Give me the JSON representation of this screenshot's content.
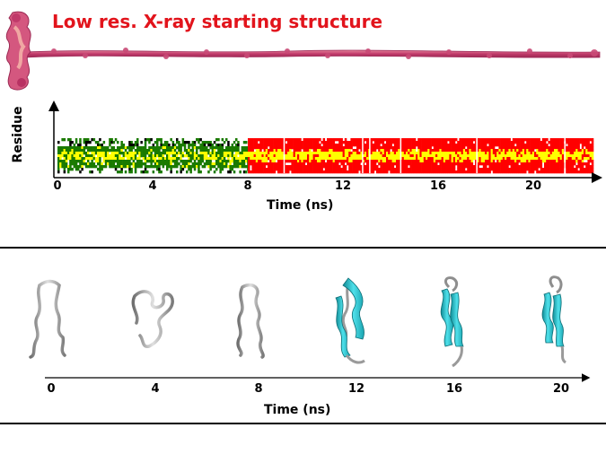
{
  "title": "Low res. X-ray starting structure",
  "colors": {
    "title": "#e2141c",
    "fiber": "#c9466e",
    "fiber_light": "#e79aa0",
    "red": "#ff0000",
    "yellow": "#ffff00",
    "green": "#1a7a00",
    "cyan": "#22c4d0",
    "coil": "#9a9a9a"
  },
  "plot": {
    "ylabel": "Residue",
    "xlabel": "Time (ns)",
    "ticks": [
      "0",
      "4",
      "8",
      "12",
      "16",
      "20"
    ],
    "transition_ns": 8
  },
  "chart_data": {
    "type": "heatmap",
    "xlabel": "Time (ns)",
    "ylabel": "Residue",
    "xlim": [
      0,
      22.5
    ],
    "xticks": [
      0,
      4,
      8,
      12,
      16,
      20
    ],
    "phases": [
      {
        "from_ns": 0,
        "to_ns": 8,
        "states": [
          "green",
          "yellow",
          "white",
          "black"
        ]
      },
      {
        "from_ns": 8,
        "to_ns": 22.5,
        "states": [
          "red",
          "yellow",
          "white"
        ]
      }
    ]
  },
  "snapshots": {
    "xlabel": "Time (ns)",
    "times": [
      "0",
      "4",
      "8",
      "12",
      "16",
      "20"
    ],
    "structures": [
      "coil",
      "coil",
      "coil",
      "hairpin",
      "hairpin",
      "hairpin"
    ]
  }
}
